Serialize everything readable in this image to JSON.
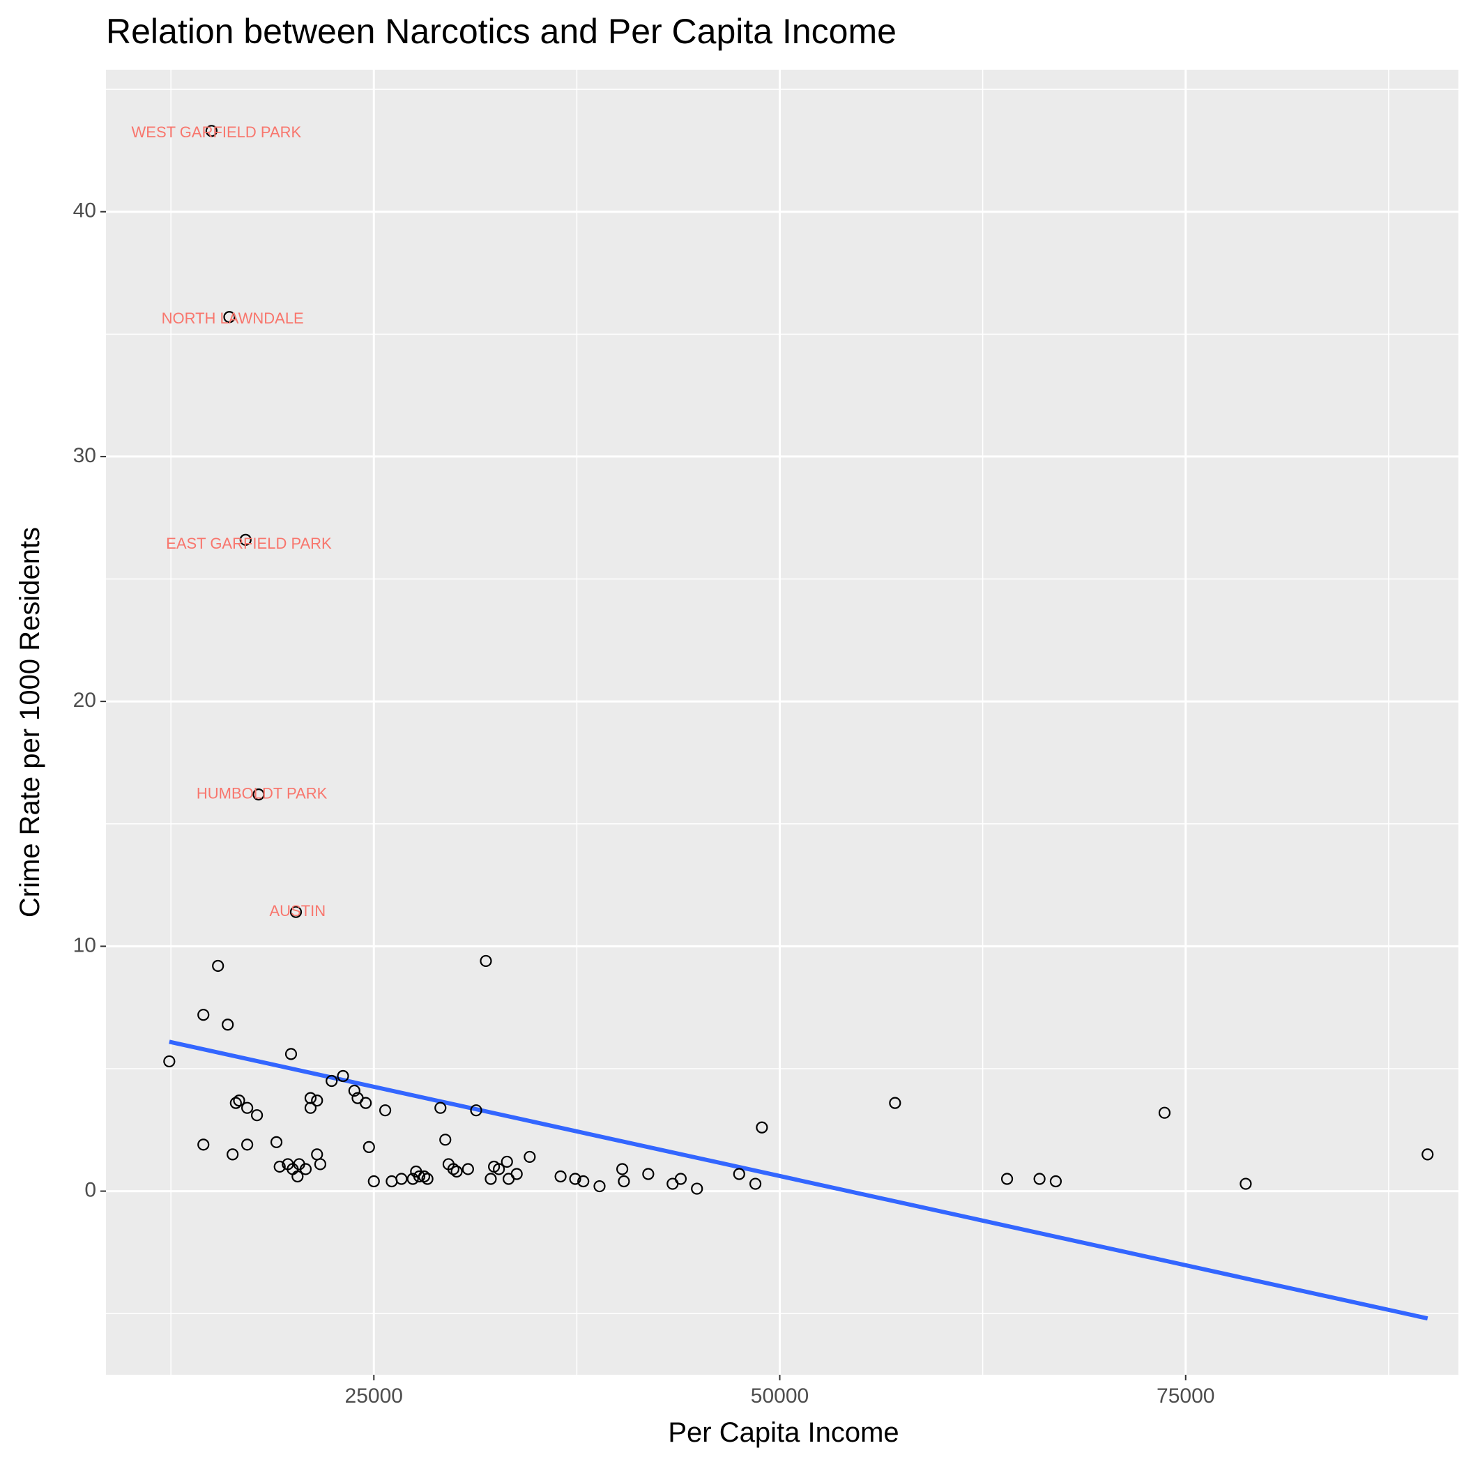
{
  "chart_data": {
    "type": "scatter",
    "title": "Relation between Narcotics and Per Capita Income",
    "xlabel": "Per Capita Income",
    "ylabel": "Crime Rate per 1000 Residents",
    "xlim": [
      8500,
      91800
    ],
    "ylim": [
      -7.5,
      45.8
    ],
    "x_ticks": [
      25000,
      50000,
      75000
    ],
    "x_tick_labels": [
      "25000",
      "50000",
      "75000"
    ],
    "y_ticks": [
      0,
      10,
      20,
      30,
      40
    ],
    "y_tick_labels": [
      "0",
      "10",
      "20",
      "30",
      "40"
    ],
    "grid": true,
    "legend": "none",
    "colors": {
      "panel": "#ebebeb",
      "grid": "#ffffff",
      "point_stroke": "#000000",
      "trend": "#3366ff",
      "label": "#f8766d"
    },
    "labels": [
      {
        "text": "WEST GARFIELD PARK",
        "x": 15300,
        "y": 43.2
      },
      {
        "text": "NORTH LAWNDALE",
        "x": 16300,
        "y": 35.6
      },
      {
        "text": "EAST GARFIELD PARK",
        "x": 17300,
        "y": 26.4
      },
      {
        "text": "HUMBOLDT PARK",
        "x": 18100,
        "y": 16.2
      },
      {
        "text": "AUSTIN",
        "x": 20300,
        "y": 11.4
      }
    ],
    "series": [
      {
        "points": [
          [
            15000,
            43.3
          ],
          [
            16100,
            35.7
          ],
          [
            17100,
            26.6
          ],
          [
            17900,
            16.2
          ],
          [
            20200,
            11.4
          ],
          [
            15400,
            9.2
          ],
          [
            14500,
            7.2
          ],
          [
            16000,
            6.8
          ],
          [
            12400,
            5.3
          ],
          [
            19900,
            5.6
          ],
          [
            23100,
            4.7
          ],
          [
            22400,
            4.5
          ],
          [
            23800,
            4.1
          ],
          [
            24000,
            3.8
          ],
          [
            24500,
            3.6
          ],
          [
            25700,
            3.3
          ],
          [
            21100,
            3.8
          ],
          [
            21500,
            3.7
          ],
          [
            21100,
            3.4
          ],
          [
            16700,
            3.7
          ],
          [
            16500,
            3.6
          ],
          [
            17200,
            3.4
          ],
          [
            17800,
            3.1
          ],
          [
            29100,
            3.4
          ],
          [
            19000,
            2.0
          ],
          [
            14500,
            1.9
          ],
          [
            17200,
            1.9
          ],
          [
            16300,
            1.5
          ],
          [
            21500,
            1.5
          ],
          [
            21700,
            1.1
          ],
          [
            19200,
            1.0
          ],
          [
            19700,
            1.1
          ],
          [
            20000,
            0.9
          ],
          [
            20400,
            1.1
          ],
          [
            20800,
            0.9
          ],
          [
            20300,
            0.6
          ],
          [
            24700,
            1.8
          ],
          [
            25000,
            0.4
          ],
          [
            26100,
            0.4
          ],
          [
            26700,
            0.5
          ],
          [
            27400,
            0.5
          ],
          [
            27600,
            0.8
          ],
          [
            27800,
            0.6
          ],
          [
            28100,
            0.6
          ],
          [
            28300,
            0.5
          ],
          [
            29400,
            2.1
          ],
          [
            29600,
            1.1
          ],
          [
            29900,
            0.9
          ],
          [
            30100,
            0.8
          ],
          [
            30800,
            0.9
          ],
          [
            31300,
            3.3
          ],
          [
            32200,
            0.5
          ],
          [
            32400,
            1.0
          ],
          [
            32700,
            0.9
          ],
          [
            33200,
            1.2
          ],
          [
            33300,
            0.5
          ],
          [
            33800,
            0.7
          ],
          [
            34600,
            1.4
          ],
          [
            36500,
            0.6
          ],
          [
            37400,
            0.5
          ],
          [
            37900,
            0.4
          ],
          [
            38900,
            0.2
          ],
          [
            40300,
            0.9
          ],
          [
            40400,
            0.4
          ],
          [
            41900,
            0.7
          ],
          [
            43400,
            0.3
          ],
          [
            43900,
            0.5
          ],
          [
            44900,
            0.1
          ],
          [
            47500,
            0.7
          ],
          [
            48500,
            0.3
          ],
          [
            48900,
            2.6
          ],
          [
            57100,
            3.6
          ],
          [
            31900,
            9.4
          ],
          [
            64000,
            0.5
          ],
          [
            66000,
            0.5
          ],
          [
            67000,
            0.4
          ],
          [
            73700,
            3.2
          ],
          [
            78700,
            0.3
          ],
          [
            89900,
            1.5
          ]
        ]
      }
    ],
    "trend_line": {
      "x": [
        12400,
        89900
      ],
      "y": [
        6.1,
        -5.2
      ]
    }
  }
}
